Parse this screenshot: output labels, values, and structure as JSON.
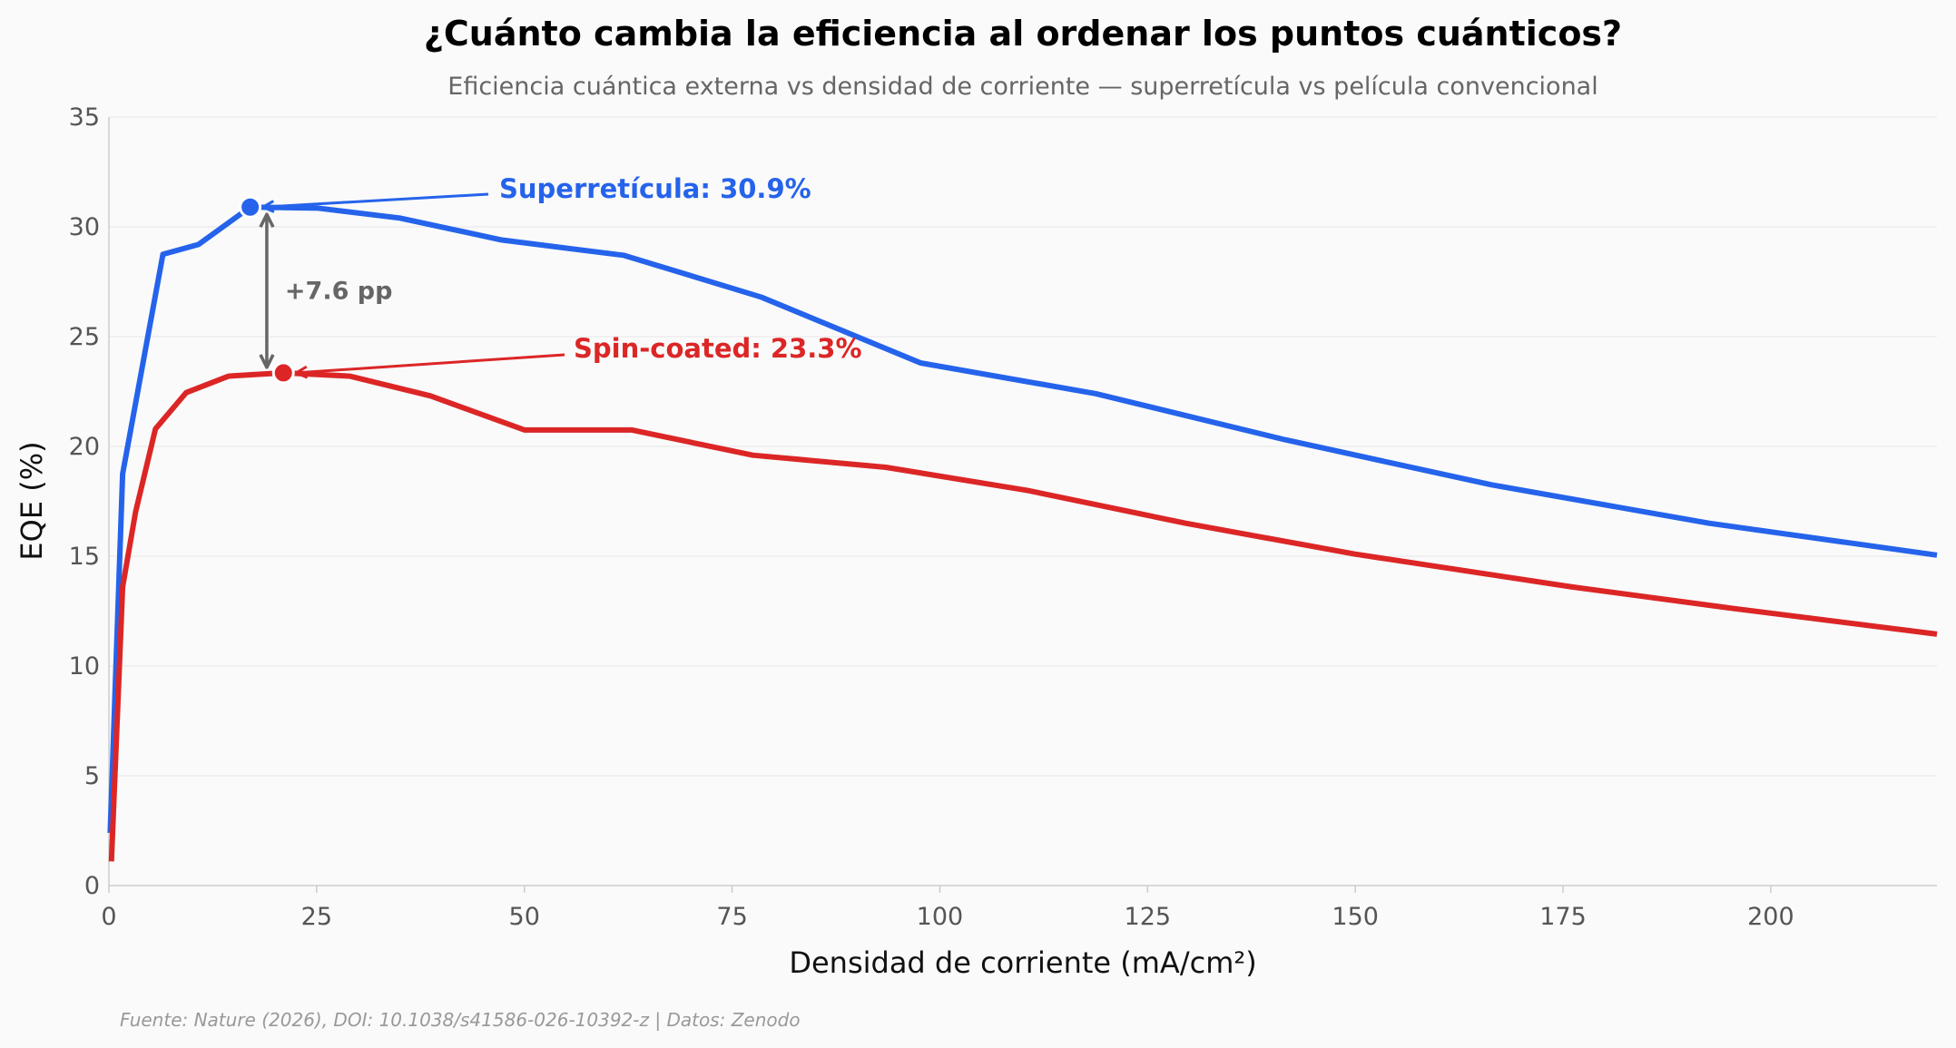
{
  "chart_data": {
    "type": "line",
    "title": "¿Cuánto cambia la eficiencia al ordenar los puntos cuánticos?",
    "subtitle": "Eficiencia cuántica externa vs densidad de corriente — superretícula vs película convencional",
    "xlabel": "Densidad de corriente (mA/cm²)",
    "ylabel": "EQE (%)",
    "xlim": [
      0,
      220
    ],
    "ylim": [
      0,
      35
    ],
    "xticks": [
      "0",
      "25",
      "50",
      "75",
      "100",
      "125",
      "150",
      "175",
      "200"
    ],
    "yticks": [
      "0",
      "5",
      "10",
      "15",
      "20",
      "25",
      "30",
      "35"
    ],
    "grid": "horizontal",
    "series": [
      {
        "color": "#2563eb",
        "x": [
          0.15,
          1.65,
          6.5,
          10.8,
          17,
          25.2,
          35,
          47.3,
          62,
          78.5,
          97.7,
          118.8,
          141.6,
          166.4,
          192.6,
          220
        ],
        "y": [
          2.4,
          18.75,
          28.75,
          29.2,
          30.9,
          30.85,
          30.4,
          29.4,
          28.7,
          26.8,
          23.8,
          22.4,
          20.3,
          18.25,
          16.5,
          15.05
        ]
      },
      {
        "color": "#dc2626",
        "x": [
          0.3,
          1.65,
          3.2,
          5.6,
          9.3,
          14.4,
          21,
          29,
          38.7,
          50,
          62.9,
          77.5,
          93.5,
          110.5,
          129.6,
          149.9,
          176.1,
          194.9,
          220
        ],
        "y": [
          1.1,
          13.6,
          17.0,
          20.8,
          22.45,
          23.2,
          23.35,
          23.2,
          22.3,
          20.75,
          20.75,
          19.6,
          19.05,
          18.0,
          16.5,
          15.1,
          13.6,
          12.65,
          11.45
        ]
      }
    ],
    "annotations": {
      "peak_blue": {
        "text": "Superretícula: 30.9%",
        "x": 17,
        "y": 30.9,
        "color": "#2563eb"
      },
      "peak_red": {
        "text": "Spin-coated: 23.3%",
        "x": 21,
        "y": 23.35,
        "color": "#dc2626"
      },
      "gap": {
        "text": "+7.6 pp",
        "color": "#666666"
      }
    },
    "footnote": "Fuente: Nature (2026), DOI: 10.1038/s41586-026-10392-z | Datos: Zenodo"
  }
}
